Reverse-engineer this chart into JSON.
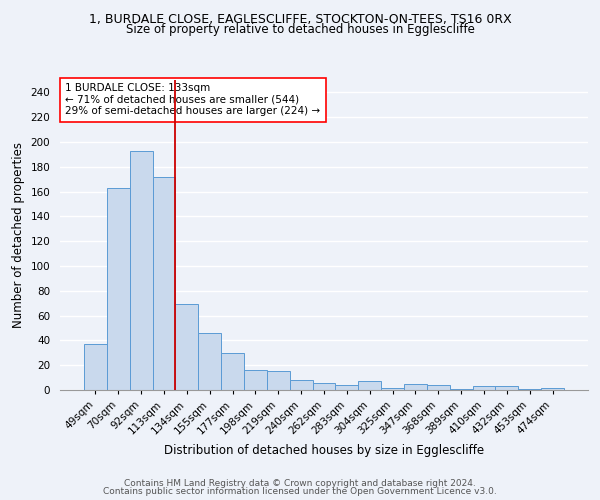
{
  "title_line1": "1, BURDALE CLOSE, EAGLESCLIFFE, STOCKTON-ON-TEES, TS16 0RX",
  "title_line2": "Size of property relative to detached houses in Egglescliffe",
  "xlabel": "Distribution of detached houses by size in Egglescliffe",
  "ylabel": "Number of detached properties",
  "categories": [
    "49sqm",
    "70sqm",
    "92sqm",
    "113sqm",
    "134sqm",
    "155sqm",
    "177sqm",
    "198sqm",
    "219sqm",
    "240sqm",
    "262sqm",
    "283sqm",
    "304sqm",
    "325sqm",
    "347sqm",
    "368sqm",
    "389sqm",
    "410sqm",
    "432sqm",
    "453sqm",
    "474sqm"
  ],
  "values": [
    37,
    163,
    193,
    172,
    69,
    46,
    30,
    16,
    15,
    8,
    6,
    4,
    7,
    2,
    5,
    4,
    1,
    3,
    3,
    1,
    2
  ],
  "bar_color": "#c9d9ed",
  "bar_edge_color": "#5b9bd5",
  "red_line_color": "#cc0000",
  "annotation_box_text": "1 BURDALE CLOSE: 133sqm\n← 71% of detached houses are smaller (544)\n29% of semi-detached houses are larger (224) →",
  "annotation_box_facecolor": "white",
  "annotation_box_edgecolor": "red",
  "footer_line1": "Contains HM Land Registry data © Crown copyright and database right 2024.",
  "footer_line2": "Contains public sector information licensed under the Open Government Licence v3.0.",
  "ylim": [
    0,
    250
  ],
  "yticks": [
    0,
    20,
    40,
    60,
    80,
    100,
    120,
    140,
    160,
    180,
    200,
    220,
    240
  ],
  "bg_color": "#eef2f9",
  "grid_color": "white",
  "title_fontsize": 9,
  "subtitle_fontsize": 8.5,
  "axis_label_fontsize": 8.5,
  "tick_fontsize": 7.5,
  "annotation_fontsize": 7.5,
  "footer_fontsize": 6.5
}
